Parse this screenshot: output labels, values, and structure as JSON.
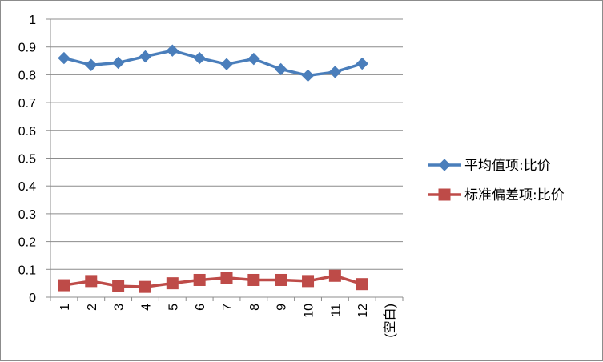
{
  "chart_data": {
    "type": "line",
    "categories": [
      "1",
      "2",
      "3",
      "4",
      "5",
      "6",
      "7",
      "8",
      "9",
      "10",
      "11",
      "12",
      "(空白)"
    ],
    "ylim": [
      0,
      1
    ],
    "yticks": [
      0,
      0.1,
      0.2,
      0.3,
      0.4,
      0.5,
      0.6,
      0.7,
      0.8,
      0.9,
      1
    ],
    "ytick_labels": [
      "0",
      "0.1",
      "0.2",
      "0.3",
      "0.4",
      "0.5",
      "0.6",
      "0.7",
      "0.8",
      "0.9",
      "1"
    ],
    "grid": true,
    "legend_position": "right",
    "series": [
      {
        "name": "平均值项:比价",
        "color": "#4a7ebb",
        "marker": "diamond",
        "values": [
          0.86,
          0.835,
          0.843,
          0.866,
          0.887,
          0.86,
          0.838,
          0.857,
          0.82,
          0.797,
          0.81,
          0.84,
          null
        ]
      },
      {
        "name": "标准偏差项:比价",
        "color": "#be4b48",
        "marker": "square",
        "values": [
          0.043,
          0.058,
          0.04,
          0.037,
          0.05,
          0.062,
          0.07,
          0.062,
          0.062,
          0.058,
          0.077,
          0.047,
          null
        ]
      }
    ]
  }
}
